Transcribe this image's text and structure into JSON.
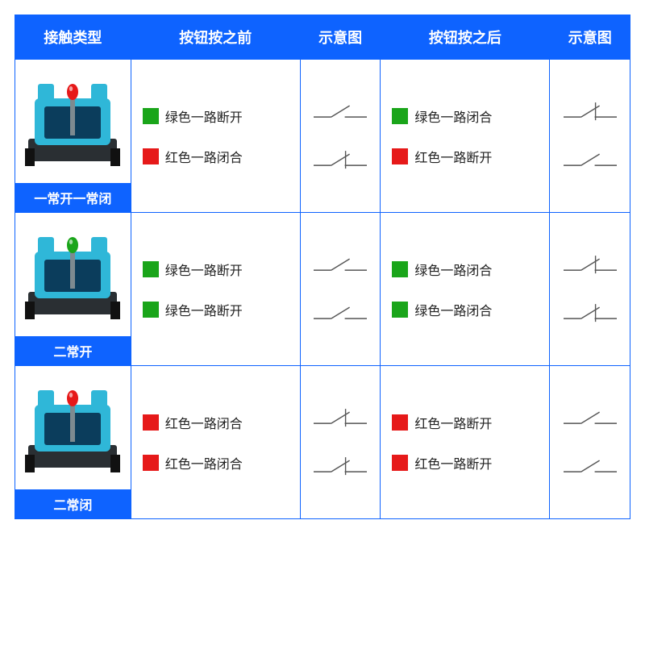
{
  "colors": {
    "header_bg": "#0e63ff",
    "header_fg": "#ffffff",
    "border": "#0e63ff",
    "text": "#222222",
    "green": "#1aa51a",
    "red": "#e61919",
    "device_body": "#2fb7d8",
    "device_dark": "#2a2f33",
    "device_accent": "#0b3d5c"
  },
  "headers": {
    "type": "接触类型",
    "before": "按钮按之前",
    "diagram1": "示意图",
    "after": "按钮按之后",
    "diagram2": "示意图"
  },
  "rows": [
    {
      "type_label": "一常开一常闭",
      "led_color": "#e61919",
      "before": [
        {
          "color": "#1aa51a",
          "text": "绿色一路断开",
          "symbol": "open"
        },
        {
          "color": "#e61919",
          "text": "红色一路闭合",
          "symbol": "closed"
        }
      ],
      "after": [
        {
          "color": "#1aa51a",
          "text": "绿色一路闭合",
          "symbol": "closed"
        },
        {
          "color": "#e61919",
          "text": "红色一路断开",
          "symbol": "open"
        }
      ]
    },
    {
      "type_label": "二常开",
      "led_color": "#1aa51a",
      "before": [
        {
          "color": "#1aa51a",
          "text": "绿色一路断开",
          "symbol": "open"
        },
        {
          "color": "#1aa51a",
          "text": "绿色一路断开",
          "symbol": "open"
        }
      ],
      "after": [
        {
          "color": "#1aa51a",
          "text": "绿色一路闭合",
          "symbol": "closed"
        },
        {
          "color": "#1aa51a",
          "text": "绿色一路闭合",
          "symbol": "closed"
        }
      ]
    },
    {
      "type_label": "二常闭",
      "led_color": "#e61919",
      "before": [
        {
          "color": "#e61919",
          "text": "红色一路闭合",
          "symbol": "closed"
        },
        {
          "color": "#e61919",
          "text": "红色一路闭合",
          "symbol": "closed"
        }
      ],
      "after": [
        {
          "color": "#e61919",
          "text": "红色一路断开",
          "symbol": "open"
        },
        {
          "color": "#e61919",
          "text": "红色一路断开",
          "symbol": "open"
        }
      ]
    }
  ],
  "diagram_style": {
    "width": 70,
    "height": 34,
    "line_color": "#555555",
    "line_width": 1.4
  }
}
